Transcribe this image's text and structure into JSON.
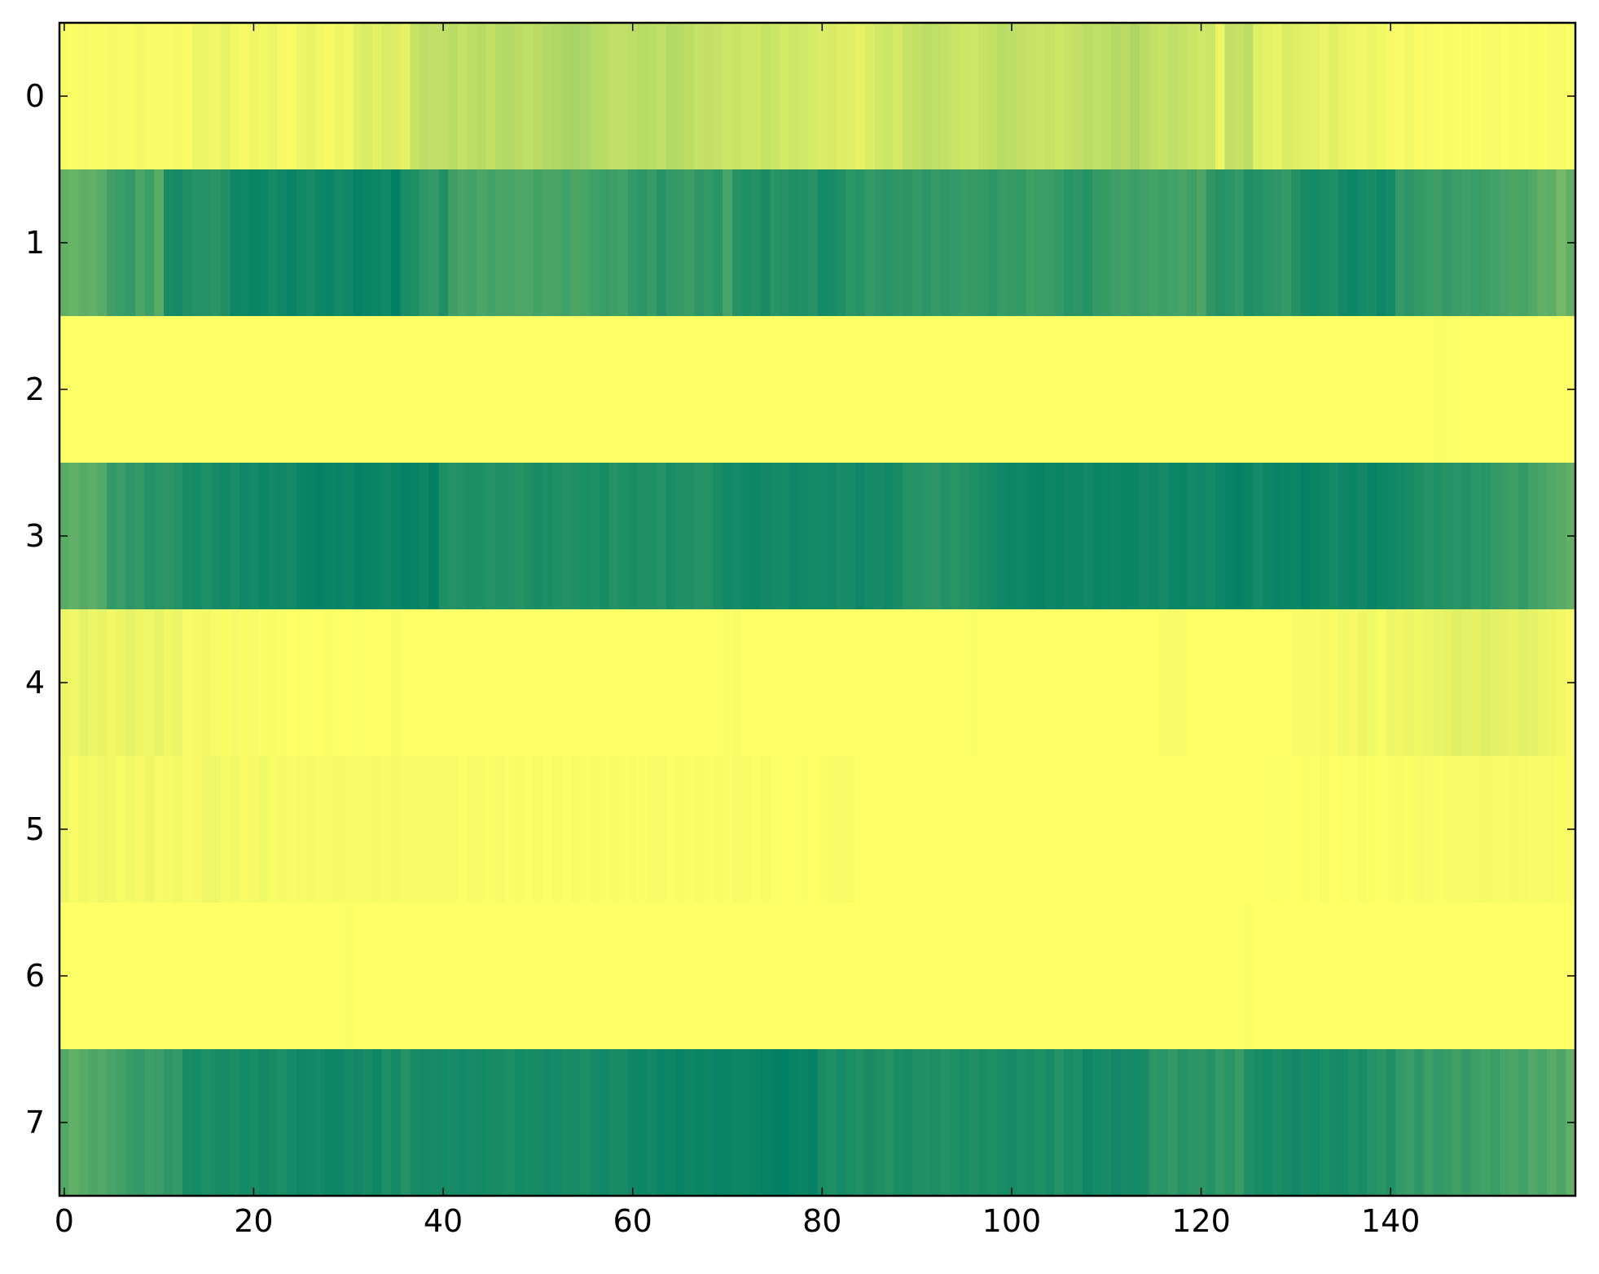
{
  "chart_data": {
    "type": "heatmap",
    "title": "",
    "xlabel": "",
    "ylabel": "",
    "colormap": "summer_r",
    "color_low": "#ffff66",
    "color_high": "#008066",
    "value_range": [
      0,
      1
    ],
    "xlim": [
      -0.5,
      159.5
    ],
    "ylim": [
      7.5,
      -0.5
    ],
    "x_ticks": [
      0,
      20,
      40,
      60,
      80,
      100,
      120,
      140
    ],
    "y_ticks": [
      0,
      1,
      2,
      3,
      4,
      5,
      6,
      7
    ],
    "grid": false,
    "rows": [
      [
        0.02,
        0.01,
        0.03,
        0.02,
        0.02,
        0.04,
        0.03,
        0.02,
        0.05,
        0.03,
        0.02,
        0.03,
        0.04,
        0.02,
        0.08,
        0.07,
        0.06,
        0.09,
        0.05,
        0.04,
        0.06,
        0.05,
        0.08,
        0.04,
        0.03,
        0.07,
        0.09,
        0.05,
        0.04,
        0.06,
        0.05,
        0.12,
        0.14,
        0.11,
        0.15,
        0.13,
        0.1,
        0.22,
        0.26,
        0.24,
        0.25,
        0.27,
        0.23,
        0.26,
        0.28,
        0.24,
        0.29,
        0.3,
        0.27,
        0.25,
        0.28,
        0.3,
        0.31,
        0.33,
        0.34,
        0.32,
        0.29,
        0.27,
        0.25,
        0.24,
        0.26,
        0.28,
        0.27,
        0.25,
        0.3,
        0.29,
        0.26,
        0.23,
        0.24,
        0.22,
        0.2,
        0.21,
        0.19,
        0.18,
        0.22,
        0.2,
        0.17,
        0.19,
        0.18,
        0.16,
        0.14,
        0.16,
        0.13,
        0.12,
        0.1,
        0.14,
        0.18,
        0.2,
        0.17,
        0.22,
        0.24,
        0.26,
        0.25,
        0.23,
        0.21,
        0.2,
        0.19,
        0.22,
        0.24,
        0.27,
        0.26,
        0.24,
        0.22,
        0.21,
        0.23,
        0.2,
        0.22,
        0.24,
        0.27,
        0.25,
        0.26,
        0.3,
        0.28,
        0.32,
        0.27,
        0.24,
        0.22,
        0.25,
        0.23,
        0.21,
        0.18,
        0.2,
        0.08,
        0.24,
        0.22,
        0.26,
        0.12,
        0.1,
        0.09,
        0.15,
        0.13,
        0.11,
        0.1,
        0.08,
        0.12,
        0.09,
        0.07,
        0.06,
        0.08,
        0.05,
        0.04,
        0.03,
        0.05,
        0.02,
        0.03,
        0.01,
        0.02,
        0.01,
        0.02,
        0.01,
        0.02,
        0.03,
        0.01,
        0.02,
        0.01,
        0.02,
        0.01,
        0.03,
        0.02,
        0.01
      ],
      [
        0.62,
        0.6,
        0.63,
        0.61,
        0.65,
        0.75,
        0.78,
        0.8,
        0.7,
        0.76,
        0.65,
        0.9,
        0.92,
        0.88,
        0.86,
        0.85,
        0.83,
        0.87,
        0.95,
        0.94,
        0.96,
        0.95,
        0.92,
        0.94,
        0.97,
        0.93,
        0.9,
        0.95,
        0.96,
        0.92,
        0.94,
        0.98,
        0.96,
        0.95,
        0.93,
        0.99,
        0.9,
        0.88,
        0.82,
        0.8,
        0.88,
        0.76,
        0.72,
        0.74,
        0.7,
        0.73,
        0.71,
        0.72,
        0.69,
        0.7,
        0.73,
        0.71,
        0.72,
        0.74,
        0.7,
        0.72,
        0.75,
        0.78,
        0.76,
        0.74,
        0.8,
        0.82,
        0.78,
        0.85,
        0.8,
        0.79,
        0.77,
        0.82,
        0.8,
        0.84,
        0.72,
        0.85,
        0.88,
        0.86,
        0.9,
        0.84,
        0.86,
        0.88,
        0.87,
        0.85,
        0.92,
        0.9,
        0.88,
        0.82,
        0.85,
        0.8,
        0.82,
        0.84,
        0.81,
        0.83,
        0.8,
        0.82,
        0.79,
        0.81,
        0.8,
        0.78,
        0.79,
        0.8,
        0.82,
        0.78,
        0.79,
        0.8,
        0.76,
        0.78,
        0.77,
        0.8,
        0.84,
        0.82,
        0.85,
        0.8,
        0.78,
        0.76,
        0.74,
        0.77,
        0.75,
        0.73,
        0.76,
        0.74,
        0.72,
        0.75,
        0.7,
        0.82,
        0.86,
        0.84,
        0.8,
        0.88,
        0.86,
        0.84,
        0.82,
        0.8,
        0.86,
        0.9,
        0.92,
        0.9,
        0.88,
        0.93,
        0.95,
        0.92,
        0.9,
        0.94,
        0.92,
        0.8,
        0.82,
        0.8,
        0.78,
        0.76,
        0.79,
        0.77,
        0.75,
        0.78,
        0.76,
        0.74,
        0.72,
        0.7,
        0.72,
        0.68,
        0.62,
        0.64,
        0.55,
        0.62
      ],
      [
        0,
        0,
        0,
        0,
        0,
        0,
        0,
        0,
        0,
        0,
        0,
        0,
        0,
        0,
        0,
        0,
        0,
        0,
        0,
        0,
        0,
        0,
        0,
        0,
        0,
        0,
        0,
        0,
        0,
        0,
        0,
        0,
        0,
        0,
        0,
        0,
        0,
        0,
        0,
        0,
        0,
        0,
        0,
        0,
        0,
        0,
        0,
        0,
        0,
        0,
        0,
        0,
        0,
        0,
        0,
        0,
        0,
        0,
        0,
        0,
        0,
        0,
        0,
        0,
        0,
        0,
        0,
        0,
        0,
        0,
        0,
        0,
        0,
        0,
        0,
        0,
        0,
        0,
        0,
        0,
        0,
        0,
        0,
        0,
        0,
        0,
        0,
        0,
        0,
        0,
        0,
        0,
        0,
        0,
        0,
        0,
        0,
        0,
        0,
        0,
        0,
        0,
        0,
        0,
        0,
        0,
        0,
        0,
        0,
        0,
        0,
        0,
        0,
        0,
        0,
        0,
        0,
        0,
        0,
        0,
        0,
        0,
        0,
        0,
        0,
        0,
        0,
        0,
        0,
        0,
        0,
        0,
        0,
        0,
        0,
        0,
        0,
        0,
        0,
        0,
        0,
        0,
        0,
        0,
        0,
        0.01,
        0.01,
        0,
        0,
        0,
        0,
        0,
        0,
        0,
        0,
        0,
        0,
        0,
        0,
        0
      ],
      [
        0.65,
        0.62,
        0.66,
        0.64,
        0.68,
        0.8,
        0.78,
        0.82,
        0.8,
        0.85,
        0.84,
        0.82,
        0.86,
        0.9,
        0.92,
        0.88,
        0.91,
        0.93,
        0.9,
        0.94,
        0.92,
        0.95,
        0.93,
        0.94,
        0.92,
        0.96,
        0.97,
        0.98,
        0.96,
        0.97,
        0.95,
        0.98,
        0.97,
        0.96,
        0.94,
        0.96,
        0.98,
        0.97,
        0.95,
        0.99,
        0.88,
        0.86,
        0.87,
        0.89,
        0.88,
        0.86,
        0.88,
        0.87,
        0.85,
        0.88,
        0.9,
        0.89,
        0.88,
        0.86,
        0.87,
        0.89,
        0.88,
        0.9,
        0.86,
        0.88,
        0.89,
        0.87,
        0.88,
        0.86,
        0.9,
        0.88,
        0.87,
        0.85,
        0.86,
        0.9,
        0.93,
        0.92,
        0.94,
        0.95,
        0.93,
        0.92,
        0.91,
        0.94,
        0.93,
        0.92,
        0.92,
        0.93,
        0.9,
        0.91,
        0.94,
        0.92,
        0.91,
        0.93,
        0.9,
        0.86,
        0.85,
        0.84,
        0.82,
        0.86,
        0.84,
        0.86,
        0.88,
        0.9,
        0.92,
        0.94,
        0.95,
        0.94,
        0.96,
        0.97,
        0.95,
        0.96,
        0.94,
        0.95,
        0.93,
        0.96,
        0.95,
        0.94,
        0.96,
        0.95,
        0.93,
        0.94,
        0.92,
        0.95,
        0.96,
        0.93,
        0.94,
        0.92,
        0.95,
        0.97,
        0.98,
        0.96,
        0.92,
        0.95,
        0.97,
        0.96,
        0.95,
        0.98,
        0.96,
        0.95,
        0.92,
        0.94,
        0.96,
        0.93,
        0.97,
        0.95,
        0.94,
        0.92,
        0.9,
        0.88,
        0.86,
        0.88,
        0.85,
        0.84,
        0.86,
        0.82,
        0.84,
        0.8,
        0.78,
        0.76,
        0.8,
        0.74,
        0.72,
        0.68,
        0.66,
        0.62
      ],
      [
        0.08,
        0.06,
        0.1,
        0.07,
        0.09,
        0.05,
        0.08,
        0.1,
        0.07,
        0.06,
        0.09,
        0.05,
        0.08,
        0.03,
        0.04,
        0.05,
        0.03,
        0.02,
        0.04,
        0.02,
        0.03,
        0.01,
        0.02,
        0.01,
        0,
        0.01,
        0,
        0,
        0.01,
        0,
        0,
        0.01,
        0,
        0,
        0,
        0.02,
        0,
        0,
        0,
        0,
        0,
        0,
        0,
        0,
        0,
        0,
        0,
        0,
        0,
        0,
        0,
        0,
        0,
        0,
        0,
        0,
        0,
        0,
        0,
        0,
        0,
        0,
        0,
        0,
        0,
        0,
        0,
        0,
        0,
        0,
        0.01,
        0.02,
        0,
        0,
        0,
        0,
        0,
        0,
        0,
        0,
        0,
        0,
        0,
        0,
        0,
        0,
        0,
        0,
        0,
        0,
        0,
        0,
        0,
        0,
        0,
        0,
        0.01,
        0,
        0,
        0,
        0,
        0,
        0,
        0,
        0,
        0,
        0,
        0,
        0,
        0,
        0,
        0,
        0,
        0,
        0,
        0,
        0.02,
        0.03,
        0.02,
        0,
        0,
        0,
        0,
        0,
        0,
        0,
        0,
        0,
        0,
        0,
        0.02,
        0.03,
        0.02,
        0.04,
        0.03,
        0.05,
        0.04,
        0.06,
        0.05,
        0.03,
        0.07,
        0.06,
        0.08,
        0.05,
        0.07,
        0.09,
        0.1,
        0.12,
        0.11,
        0.1,
        0.12,
        0.11,
        0.1,
        0.09,
        0.11,
        0.1,
        0.08,
        0.06,
        0.05,
        0.04
      ],
      [
        0.06,
        0.03,
        0.05,
        0.04,
        0.06,
        0.05,
        0.03,
        0.05,
        0.04,
        0.06,
        0.03,
        0.04,
        0.05,
        0.03,
        0.04,
        0.06,
        0.07,
        0.04,
        0.05,
        0.03,
        0.04,
        0.05,
        0.03,
        0.04,
        0.02,
        0.03,
        0.04,
        0.02,
        0.03,
        0.04,
        0.03,
        0.02,
        0.03,
        0.04,
        0.02,
        0.04,
        0.03,
        0.02,
        0.03,
        0.02,
        0.03,
        0.02,
        0.01,
        0.03,
        0.02,
        0.01,
        0.03,
        0.01,
        0.02,
        0.01,
        0.02,
        0.01,
        0.02,
        0.01,
        0.03,
        0.01,
        0.02,
        0.01,
        0.02,
        0.01,
        0.02,
        0.01,
        0.02,
        0.03,
        0.01,
        0.02,
        0.01,
        0.02,
        0.01,
        0.02,
        0.01,
        0.03,
        0.02,
        0.01,
        0.02,
        0.01,
        0,
        0,
        0.01,
        0,
        0.01,
        0.02,
        0.03,
        0.02,
        0,
        0,
        0,
        0,
        0,
        0,
        0,
        0,
        0,
        0,
        0,
        0,
        0,
        0,
        0,
        0,
        0,
        0,
        0,
        0,
        0,
        0,
        0,
        0,
        0,
        0,
        0,
        0,
        0,
        0,
        0,
        0,
        0,
        0,
        0,
        0,
        0,
        0,
        0,
        0,
        0,
        0,
        0,
        0,
        0.01,
        0,
        0,
        0.01,
        0,
        0.02,
        0,
        0.01,
        0,
        0.02,
        0.01,
        0,
        0.01,
        0.02,
        0.01,
        0.03,
        0.02,
        0.01,
        0.02,
        0.03,
        0.02,
        0.03,
        0.04,
        0.03,
        0.02,
        0.04,
        0.03,
        0.02,
        0.03,
        0.04,
        0.02,
        0.03
      ],
      [
        0,
        0,
        0,
        0,
        0,
        0,
        0,
        0,
        0,
        0,
        0,
        0,
        0,
        0,
        0,
        0,
        0,
        0,
        0,
        0,
        0,
        0,
        0,
        0,
        0,
        0,
        0,
        0,
        0,
        0,
        0.01,
        0,
        0,
        0,
        0,
        0,
        0,
        0,
        0,
        0,
        0,
        0,
        0,
        0,
        0,
        0,
        0,
        0,
        0,
        0,
        0,
        0,
        0,
        0,
        0,
        0,
        0,
        0,
        0,
        0,
        0,
        0,
        0,
        0,
        0,
        0,
        0,
        0,
        0,
        0,
        0,
        0,
        0,
        0,
        0,
        0,
        0,
        0,
        0,
        0,
        0,
        0,
        0,
        0,
        0,
        0,
        0,
        0,
        0,
        0,
        0,
        0,
        0,
        0,
        0,
        0,
        0,
        0,
        0,
        0,
        0,
        0,
        0,
        0,
        0,
        0,
        0,
        0,
        0,
        0,
        0,
        0,
        0,
        0,
        0,
        0,
        0,
        0,
        0,
        0,
        0,
        0,
        0,
        0,
        0,
        0.01,
        0,
        0,
        0,
        0,
        0,
        0,
        0,
        0,
        0,
        0,
        0,
        0,
        0,
        0,
        0,
        0,
        0,
        0,
        0,
        0,
        0,
        0,
        0,
        0,
        0,
        0,
        0,
        0,
        0,
        0,
        0,
        0,
        0,
        0
      ],
      [
        0.68,
        0.62,
        0.66,
        0.7,
        0.68,
        0.72,
        0.74,
        0.78,
        0.8,
        0.76,
        0.78,
        0.82,
        0.8,
        0.9,
        0.92,
        0.88,
        0.9,
        0.91,
        0.89,
        0.92,
        0.9,
        0.93,
        0.91,
        0.89,
        0.92,
        0.94,
        0.93,
        0.92,
        0.95,
        0.94,
        0.92,
        0.93,
        0.9,
        0.94,
        0.88,
        0.92,
        0.86,
        0.9,
        0.92,
        0.91,
        0.92,
        0.9,
        0.93,
        0.91,
        0.92,
        0.9,
        0.91,
        0.89,
        0.92,
        0.9,
        0.91,
        0.93,
        0.92,
        0.9,
        0.91,
        0.89,
        0.92,
        0.93,
        0.9,
        0.91,
        0.94,
        0.95,
        0.93,
        0.96,
        0.95,
        0.97,
        0.94,
        0.96,
        0.95,
        0.97,
        0.96,
        0.94,
        0.95,
        0.96,
        0.97,
        0.98,
        0.99,
        0.97,
        0.96,
        0.98,
        0.9,
        0.88,
        0.92,
        0.89,
        0.87,
        0.9,
        0.88,
        0.86,
        0.89,
        0.9,
        0.88,
        0.87,
        0.89,
        0.86,
        0.88,
        0.9,
        0.87,
        0.89,
        0.88,
        0.9,
        0.92,
        0.89,
        0.9,
        0.88,
        0.91,
        0.86,
        0.9,
        0.89,
        0.94,
        0.92,
        0.9,
        0.93,
        0.91,
        0.92,
        0.9,
        0.82,
        0.84,
        0.8,
        0.86,
        0.83,
        0.82,
        0.86,
        0.8,
        0.84,
        0.78,
        0.88,
        0.9,
        0.92,
        0.89,
        0.91,
        0.93,
        0.9,
        0.92,
        0.89,
        0.91,
        0.92,
        0.88,
        0.9,
        0.86,
        0.84,
        0.88,
        0.8,
        0.78,
        0.82,
        0.76,
        0.8,
        0.78,
        0.75,
        0.79,
        0.76,
        0.74,
        0.78,
        0.72,
        0.7,
        0.74,
        0.68,
        0.72,
        0.66,
        0.7,
        0.62
      ]
    ]
  }
}
